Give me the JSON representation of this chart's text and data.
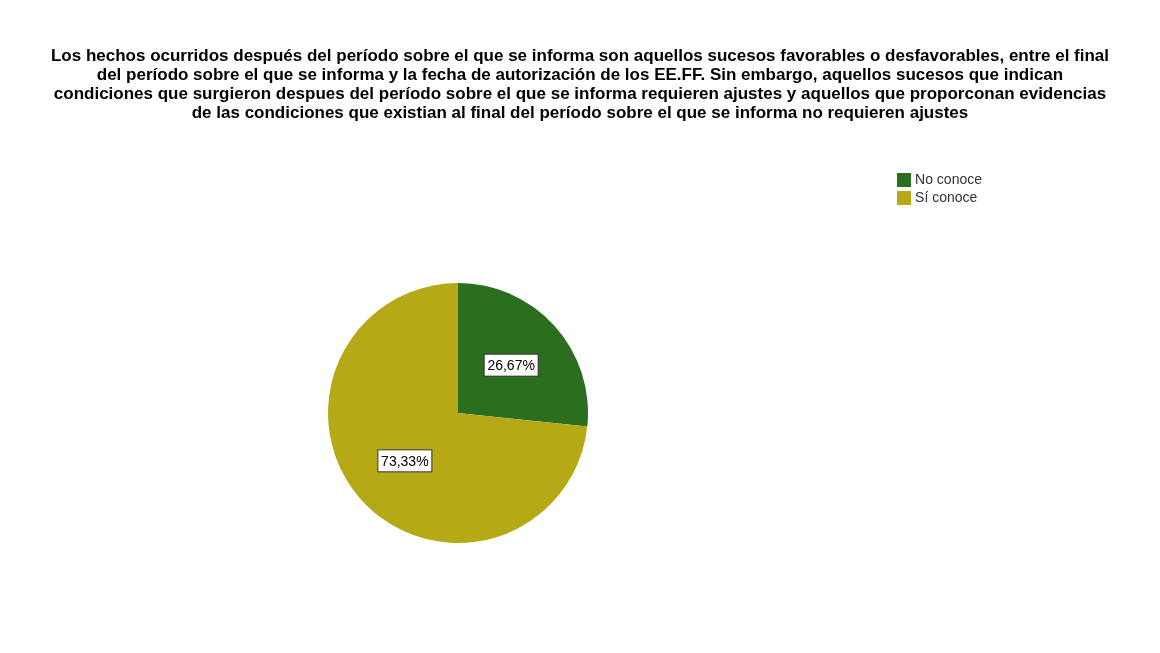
{
  "chart_data": {
    "type": "pie",
    "title": "Los hechos ocurridos después del período sobre el que se informa son aquellos sucesos favorables o desfavorables, entre el final del período sobre el que se informa y la fecha de autorización de los EE.FF. Sin embargo, aquellos sucesos que indican condiciones que surgieron despues del período sobre el que se informa requieren ajustes y aquellos que proporconan evidencias de las condiciones que existian al final del período sobre el que se informa no requieren ajustes",
    "categories": [
      "No conoce",
      "Sí conoce"
    ],
    "values": [
      26.67,
      73.33
    ],
    "colors": [
      "#2a6e1e",
      "#b5aa16"
    ],
    "value_labels": [
      "26,67%",
      "73,33%"
    ],
    "legend": "top right"
  }
}
